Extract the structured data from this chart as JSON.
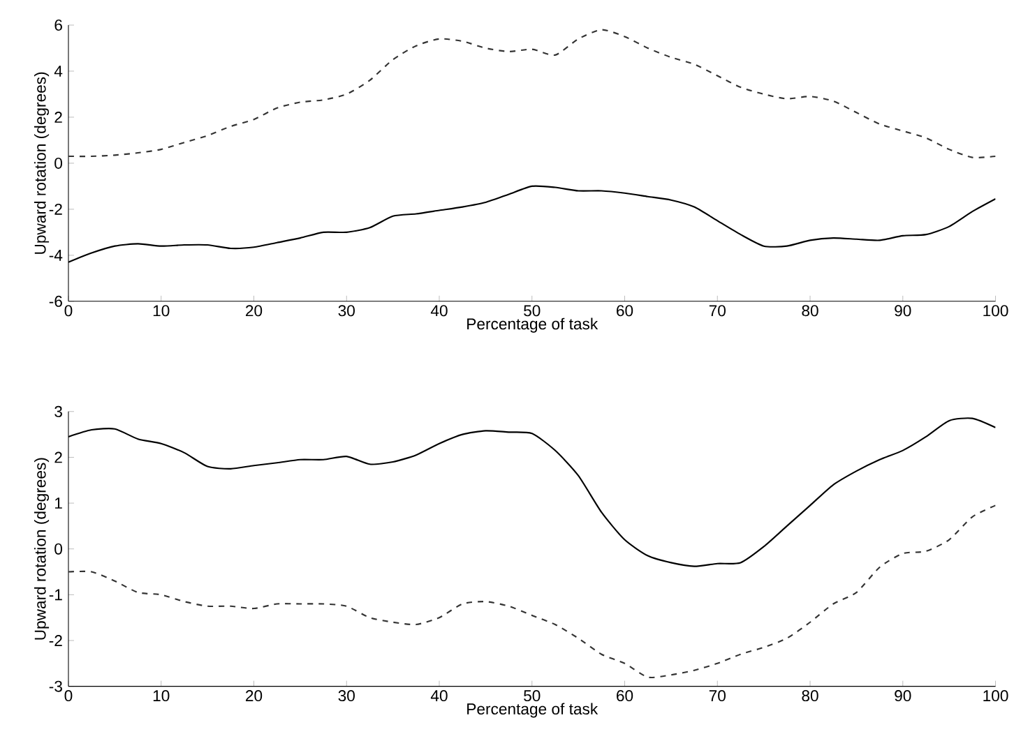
{
  "chart_data": [
    {
      "type": "line",
      "xlabel": "Percentage of task",
      "ylabel": "Upward rotation (degrees)",
      "xlim": [
        0,
        100
      ],
      "ylim": [
        -6,
        6
      ],
      "xticks": [
        0,
        10,
        20,
        30,
        40,
        50,
        60,
        70,
        80,
        90,
        100
      ],
      "yticks": [
        -6,
        -4,
        -2,
        0,
        2,
        4,
        6
      ],
      "x": [
        0,
        2.5,
        5,
        7.5,
        10,
        12.5,
        15,
        17.5,
        20,
        22.5,
        25,
        27.5,
        30,
        32.5,
        35,
        37.5,
        40,
        42.5,
        45,
        47.5,
        50,
        52.5,
        55,
        57.5,
        60,
        62.5,
        65,
        67.5,
        70,
        72.5,
        75,
        77.5,
        80,
        82.5,
        85,
        87.5,
        90,
        92.5,
        95,
        97.5,
        100
      ],
      "series": [
        {
          "color": "#000000",
          "line_style": "solid",
          "values": [
            -4.3,
            -3.9,
            -3.6,
            -3.5,
            -3.6,
            -3.55,
            -3.55,
            -3.7,
            -3.65,
            -3.45,
            -3.25,
            -3.0,
            -3.0,
            -2.8,
            -2.3,
            -2.2,
            -2.05,
            -1.9,
            -1.7,
            -1.35,
            -1.0,
            -1.05,
            -1.2,
            -1.2,
            -1.3,
            -1.45,
            -1.6,
            -1.9,
            -2.5,
            -3.1,
            -3.6,
            -3.6,
            -3.35,
            -3.25,
            -3.3,
            -3.35,
            -3.15,
            -3.1,
            -2.75,
            -2.1,
            -1.55
          ]
        },
        {
          "color": "#333333",
          "line_style": "dashed",
          "values": [
            0.3,
            0.3,
            0.35,
            0.45,
            0.6,
            0.9,
            1.2,
            1.6,
            1.9,
            2.4,
            2.65,
            2.75,
            3.0,
            3.6,
            4.5,
            5.1,
            5.4,
            5.3,
            5.0,
            4.85,
            4.95,
            4.7,
            5.4,
            5.8,
            5.5,
            5.0,
            4.6,
            4.3,
            3.8,
            3.3,
            3.0,
            2.8,
            2.9,
            2.7,
            2.2,
            1.7,
            1.4,
            1.1,
            0.6,
            0.25,
            0.3
          ]
        }
      ]
    },
    {
      "type": "line",
      "xlabel": "Percentage of task",
      "ylabel": "Upward rotation (degrees)",
      "xlim": [
        0,
        100
      ],
      "ylim": [
        -3,
        3
      ],
      "xticks": [
        0,
        10,
        20,
        30,
        40,
        50,
        60,
        70,
        80,
        90,
        100
      ],
      "yticks": [
        -3,
        -2,
        -1,
        0,
        1,
        2,
        3
      ],
      "x": [
        0,
        2.5,
        5,
        7.5,
        10,
        12.5,
        15,
        17.5,
        20,
        22.5,
        25,
        27.5,
        30,
        32.5,
        35,
        37.5,
        40,
        42.5,
        45,
        47.5,
        50,
        52.5,
        55,
        57.5,
        60,
        62.5,
        65,
        67.5,
        70,
        72.5,
        75,
        77.5,
        80,
        82.5,
        85,
        87.5,
        90,
        92.5,
        95,
        97.5,
        100
      ],
      "series": [
        {
          "color": "#000000",
          "line_style": "solid",
          "values": [
            2.45,
            2.6,
            2.62,
            2.4,
            2.3,
            2.1,
            1.8,
            1.75,
            1.82,
            1.88,
            1.95,
            1.95,
            2.02,
            1.85,
            1.9,
            2.05,
            2.3,
            2.5,
            2.58,
            2.55,
            2.52,
            2.15,
            1.6,
            0.8,
            0.2,
            -0.15,
            -0.3,
            -0.38,
            -0.32,
            -0.3,
            0.05,
            0.5,
            0.95,
            1.4,
            1.7,
            1.95,
            2.15,
            2.45,
            2.8,
            2.85,
            2.65
          ]
        },
        {
          "color": "#333333",
          "line_style": "dashed",
          "values": [
            -0.5,
            -0.5,
            -0.7,
            -0.95,
            -1.0,
            -1.15,
            -1.25,
            -1.25,
            -1.3,
            -1.2,
            -1.2,
            -1.2,
            -1.25,
            -1.5,
            -1.6,
            -1.65,
            -1.5,
            -1.2,
            -1.15,
            -1.25,
            -1.45,
            -1.65,
            -1.95,
            -2.3,
            -2.5,
            -2.8,
            -2.75,
            -2.65,
            -2.5,
            -2.3,
            -2.15,
            -1.95,
            -1.6,
            -1.2,
            -0.95,
            -0.4,
            -0.1,
            -0.05,
            0.2,
            0.7,
            0.95
          ]
        }
      ]
    }
  ]
}
